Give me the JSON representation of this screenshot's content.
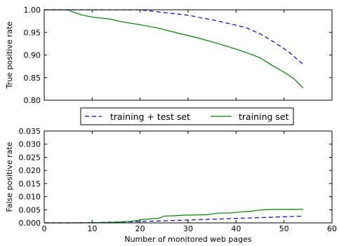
{
  "chart_data": [
    {
      "type": "line",
      "title": "",
      "xlabel": "",
      "ylabel": "True positive rate",
      "xlim": [
        0,
        60
      ],
      "ylim": [
        0.8,
        1.0
      ],
      "x_ticks": [
        0,
        10,
        20,
        30,
        40,
        50,
        60
      ],
      "show_x_tick_labels": false,
      "y_ticks": [
        0.8,
        0.85,
        0.9,
        0.95,
        1.0
      ],
      "y_tick_labels": [
        "0.80",
        "0.85",
        "0.90",
        "0.95",
        "1.00"
      ],
      "grid": false,
      "series": [
        {
          "name": "training + test set",
          "color": "#0000cc",
          "style": "dashed",
          "x": [
            0,
            5,
            10,
            15,
            20,
            25,
            30,
            35,
            40,
            42,
            45,
            48,
            51,
            54
          ],
          "y": [
            1.0,
            1.0,
            1.0,
            1.0,
            1.0,
            0.994,
            0.988,
            0.978,
            0.966,
            0.961,
            0.947,
            0.928,
            0.907,
            0.879
          ]
        },
        {
          "name": "training set",
          "color": "#008000",
          "style": "solid",
          "x": [
            0,
            4,
            5,
            6,
            8,
            10,
            14,
            16,
            20,
            24,
            28,
            32,
            36,
            40,
            42,
            45,
            48,
            50,
            52,
            54
          ],
          "y": [
            1.0,
            1.0,
            1.0,
            0.995,
            0.988,
            0.984,
            0.979,
            0.974,
            0.967,
            0.959,
            0.948,
            0.938,
            0.926,
            0.913,
            0.906,
            0.894,
            0.874,
            0.862,
            0.848,
            0.827
          ]
        }
      ]
    },
    {
      "type": "line",
      "title": "",
      "xlabel": "Number of monitored web pages",
      "ylabel": "False positive rate",
      "xlim": [
        0,
        60
      ],
      "ylim": [
        0.0,
        0.035
      ],
      "x_ticks": [
        0,
        10,
        20,
        30,
        40,
        50,
        60
      ],
      "x_tick_labels": [
        "0",
        "10",
        "20",
        "30",
        "40",
        "50",
        "60"
      ],
      "y_ticks": [
        0.0,
        0.005,
        0.01,
        0.015,
        0.02,
        0.025,
        0.03,
        0.035
      ],
      "y_tick_labels": [
        "0.000",
        "0.005",
        "0.010",
        "0.015",
        "0.020",
        "0.025",
        "0.030",
        "0.035"
      ],
      "grid": false,
      "series": [
        {
          "name": "training + test set",
          "color": "#0000cc",
          "style": "dashed",
          "x": [
            0,
            5,
            10,
            15,
            20,
            25,
            30,
            35,
            40,
            45,
            50,
            54
          ],
          "y": [
            0.0,
            0.0,
            0.0001,
            0.0003,
            0.0005,
            0.0008,
            0.0011,
            0.0014,
            0.0017,
            0.002,
            0.0023,
            0.0026
          ]
        },
        {
          "name": "training set",
          "color": "#008000",
          "style": "solid",
          "x": [
            0,
            8,
            14,
            16,
            18,
            19,
            20,
            22,
            24,
            25,
            27,
            29,
            31,
            34,
            36,
            39,
            41,
            43,
            45,
            47,
            54
          ],
          "y": [
            0.0,
            0.0,
            0.0002,
            0.0004,
            0.0006,
            0.0008,
            0.0012,
            0.0015,
            0.0018,
            0.0026,
            0.0027,
            0.0029,
            0.003,
            0.0031,
            0.0037,
            0.0038,
            0.0042,
            0.0044,
            0.0049,
            0.0051,
            0.0052
          ]
        }
      ]
    }
  ],
  "legend": {
    "placement": "between-panels",
    "entries": [
      {
        "label": "training + test set",
        "color": "#0000cc",
        "style": "dashed"
      },
      {
        "label": "training set",
        "color": "#008000",
        "style": "solid"
      }
    ]
  }
}
